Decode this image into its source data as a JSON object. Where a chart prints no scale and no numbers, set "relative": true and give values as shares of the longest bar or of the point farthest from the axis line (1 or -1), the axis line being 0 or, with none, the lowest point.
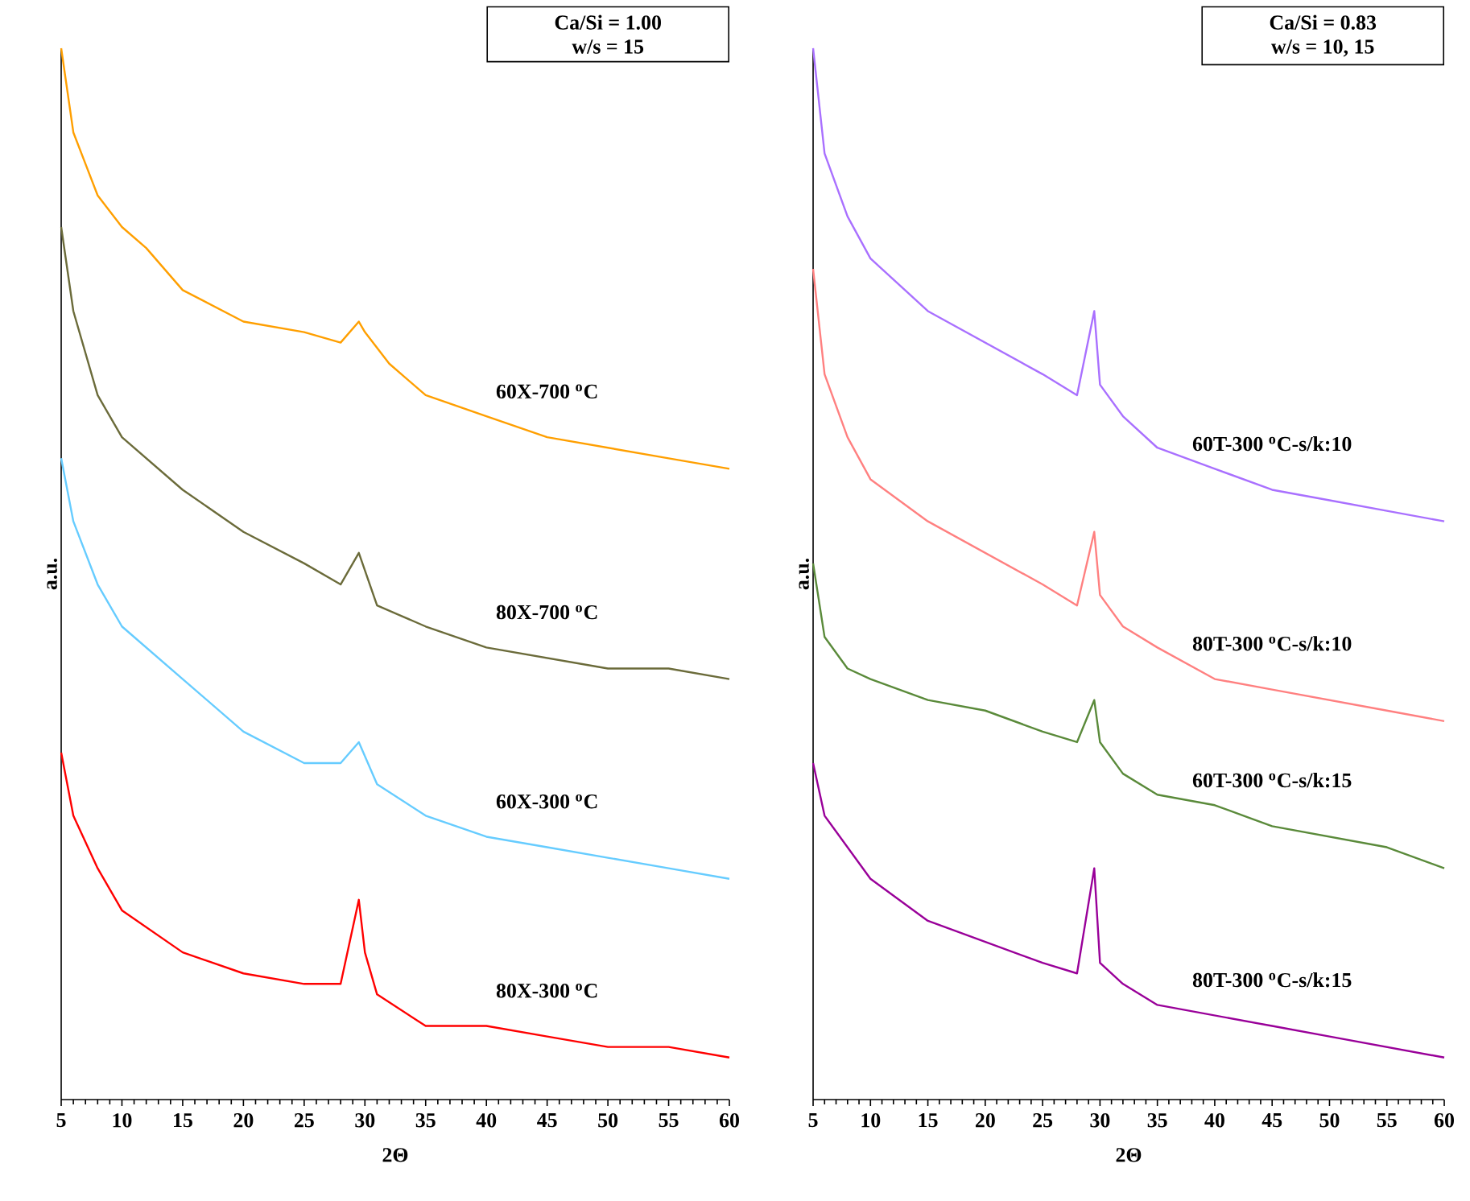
{
  "chart_data": [
    {
      "type": "line",
      "relative": true,
      "xlabel": "2Θ",
      "ylabel": "a.u.",
      "xlim": [
        5,
        60
      ],
      "xticks": [
        5,
        10,
        15,
        20,
        25,
        30,
        35,
        40,
        45,
        50,
        55,
        60
      ],
      "annotations": [
        "Ca/Si = 1.00",
        "w/s = 15"
      ],
      "series": [
        {
          "name": "60X-700 $^{o}$C",
          "color": "#ff9f00",
          "x": [
            5,
            6,
            7,
            8,
            10,
            12,
            15,
            20,
            25,
            28,
            29.5,
            30,
            32,
            35,
            40,
            45,
            50,
            55,
            60
          ],
          "values": [
            1.0,
            0.92,
            0.89,
            0.86,
            0.83,
            0.81,
            0.77,
            0.74,
            0.73,
            0.72,
            0.74,
            0.73,
            0.7,
            0.67,
            0.65,
            0.63,
            0.62,
            0.61,
            0.6
          ]
        },
        {
          "name": "80X-700 $^{o}$C",
          "color": "#6b6b3a",
          "x": [
            5,
            6,
            8,
            10,
            15,
            20,
            25,
            28,
            29.5,
            31,
            35,
            40,
            45,
            50,
            55,
            60
          ],
          "values": [
            0.83,
            0.75,
            0.67,
            0.63,
            0.58,
            0.54,
            0.51,
            0.49,
            0.52,
            0.47,
            0.45,
            0.43,
            0.42,
            0.41,
            0.41,
            0.4
          ]
        },
        {
          "name": "60X-300 $^{o}$C",
          "color": "#66ccff",
          "x": [
            5,
            6,
            8,
            10,
            15,
            20,
            25,
            28,
            29.5,
            31,
            35,
            40,
            45,
            50,
            55,
            60
          ],
          "values": [
            0.61,
            0.55,
            0.49,
            0.45,
            0.4,
            0.35,
            0.32,
            0.32,
            0.34,
            0.3,
            0.27,
            0.25,
            0.24,
            0.23,
            0.22,
            0.21
          ]
        },
        {
          "name": "80X-300 $^{o}$C",
          "color": "#ff0000",
          "x": [
            5,
            6,
            8,
            10,
            15,
            20,
            25,
            28,
            29.5,
            30,
            31,
            35,
            40,
            45,
            50,
            55,
            60
          ],
          "values": [
            0.33,
            0.27,
            0.22,
            0.18,
            0.14,
            0.12,
            0.11,
            0.11,
            0.19,
            0.14,
            0.1,
            0.07,
            0.07,
            0.06,
            0.05,
            0.05,
            0.04
          ]
        }
      ]
    },
    {
      "type": "line",
      "relative": true,
      "xlabel": "2Θ",
      "ylabel": "a.u.",
      "xlim": [
        5,
        60
      ],
      "xticks": [
        5,
        10,
        15,
        20,
        25,
        30,
        35,
        40,
        45,
        50,
        55,
        60
      ],
      "annotations": [
        "Ca/Si = 0.83",
        "w/s = 10, 15"
      ],
      "series": [
        {
          "name": "60T-300 $^{o}$C-s/k:10",
          "color": "#a970ff",
          "x": [
            5,
            6,
            8,
            10,
            15,
            20,
            25,
            28,
            29.5,
            30,
            32,
            35,
            40,
            45,
            50,
            55,
            60
          ],
          "values": [
            1.0,
            0.9,
            0.84,
            0.8,
            0.75,
            0.72,
            0.69,
            0.67,
            0.75,
            0.68,
            0.65,
            0.62,
            0.6,
            0.58,
            0.57,
            0.56,
            0.55
          ]
        },
        {
          "name": "80T-300 $^{o}$C-s/k:10",
          "color": "#ff8080",
          "x": [
            5,
            6,
            8,
            10,
            15,
            20,
            25,
            28,
            29.5,
            30,
            32,
            35,
            40,
            45,
            50,
            55,
            60
          ],
          "values": [
            0.79,
            0.69,
            0.63,
            0.59,
            0.55,
            0.52,
            0.49,
            0.47,
            0.54,
            0.48,
            0.45,
            0.43,
            0.4,
            0.39,
            0.38,
            0.37,
            0.36
          ]
        },
        {
          "name": "60T-300 $^{o}$C-s/k:15",
          "color": "#5a8a3a",
          "x": [
            5,
            6,
            8,
            10,
            15,
            20,
            25,
            28,
            29.5,
            30,
            32,
            35,
            40,
            45,
            50,
            55,
            60
          ],
          "values": [
            0.51,
            0.44,
            0.41,
            0.4,
            0.38,
            0.37,
            0.35,
            0.34,
            0.38,
            0.34,
            0.31,
            0.29,
            0.28,
            0.26,
            0.25,
            0.24,
            0.22
          ]
        },
        {
          "name": "80T-300 $^{o}$C-s/k:15",
          "color": "#990099",
          "x": [
            5,
            6,
            8,
            10,
            15,
            20,
            25,
            28,
            29.5,
            30,
            32,
            35,
            40,
            45,
            50,
            55,
            60
          ],
          "values": [
            0.32,
            0.27,
            0.24,
            0.21,
            0.17,
            0.15,
            0.13,
            0.12,
            0.22,
            0.13,
            0.11,
            0.09,
            0.08,
            0.07,
            0.06,
            0.05,
            0.04
          ]
        }
      ]
    }
  ]
}
